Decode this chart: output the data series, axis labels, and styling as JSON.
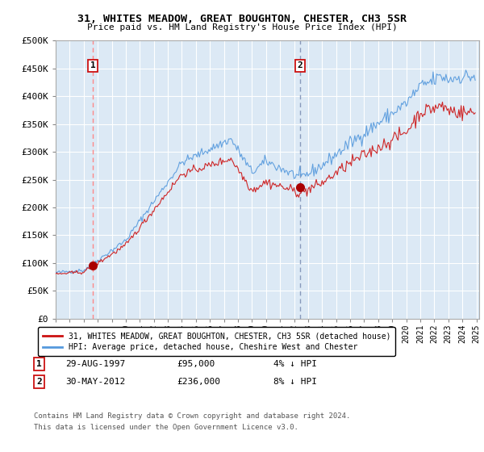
{
  "title1": "31, WHITES MEADOW, GREAT BOUGHTON, CHESTER, CH3 5SR",
  "title2": "Price paid vs. HM Land Registry's House Price Index (HPI)",
  "ylabel_ticks": [
    "£0",
    "£50K",
    "£100K",
    "£150K",
    "£200K",
    "£250K",
    "£300K",
    "£350K",
    "£400K",
    "£450K",
    "£500K"
  ],
  "ytick_values": [
    0,
    50000,
    100000,
    150000,
    200000,
    250000,
    300000,
    350000,
    400000,
    450000,
    500000
  ],
  "xlim_start": 1995.0,
  "xlim_end": 2025.2,
  "ylim": [
    0,
    500000
  ],
  "bg_color": "#dce9f5",
  "grid_color": "#ffffff",
  "hpi_color": "#5599dd",
  "price_color": "#cc1111",
  "sale1_dashed_color": "#ff8888",
  "sale2_dashed_color": "#8899bb",
  "marker_color": "#aa0000",
  "sale1_x": 1997.66,
  "sale1_y": 95000,
  "sale2_x": 2012.42,
  "sale2_y": 236000,
  "legend_label1": "31, WHITES MEADOW, GREAT BOUGHTON, CHESTER, CH3 5SR (detached house)",
  "legend_label2": "HPI: Average price, detached house, Cheshire West and Chester",
  "footnote1": "Contains HM Land Registry data © Crown copyright and database right 2024.",
  "footnote2": "This data is licensed under the Open Government Licence v3.0."
}
